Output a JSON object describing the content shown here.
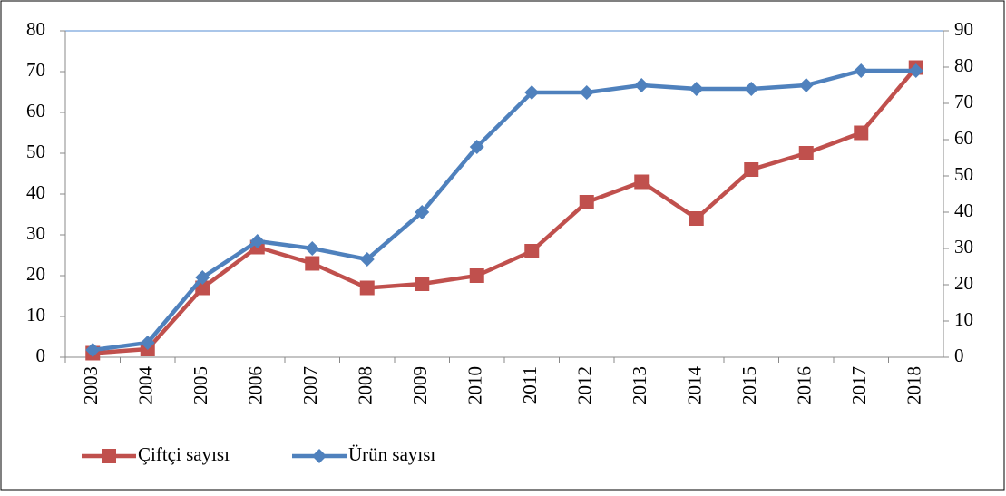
{
  "chart_data": {
    "type": "line",
    "categories": [
      "2003",
      "2004",
      "2005",
      "2006",
      "2007",
      "2008",
      "2009",
      "2010",
      "2011",
      "2012",
      "2013",
      "2014",
      "2015",
      "2016",
      "2017",
      "2018"
    ],
    "series": [
      {
        "name": "Çiftçi sayısı",
        "color": "#c0504d",
        "marker": "square",
        "axis": "y",
        "values": [
          1,
          2,
          17,
          27,
          23,
          17,
          18,
          20,
          26,
          38,
          43,
          34,
          46,
          50,
          55,
          71
        ]
      },
      {
        "name": "Ürün sayısı",
        "color": "#4f81bd",
        "marker": "diamond",
        "axis": "y2",
        "values": [
          2,
          4,
          22,
          32,
          30,
          27,
          40,
          58,
          73,
          73,
          75,
          74,
          74,
          75,
          79,
          79
        ]
      }
    ],
    "ylim": [
      0,
      80
    ],
    "yticks": [
      0,
      10,
      20,
      30,
      40,
      50,
      60,
      70,
      80
    ],
    "y2lim": [
      0,
      90
    ],
    "y2ticks": [
      0,
      10,
      20,
      30,
      40,
      50,
      60,
      70,
      80,
      90
    ],
    "legend": "bottom-left"
  }
}
